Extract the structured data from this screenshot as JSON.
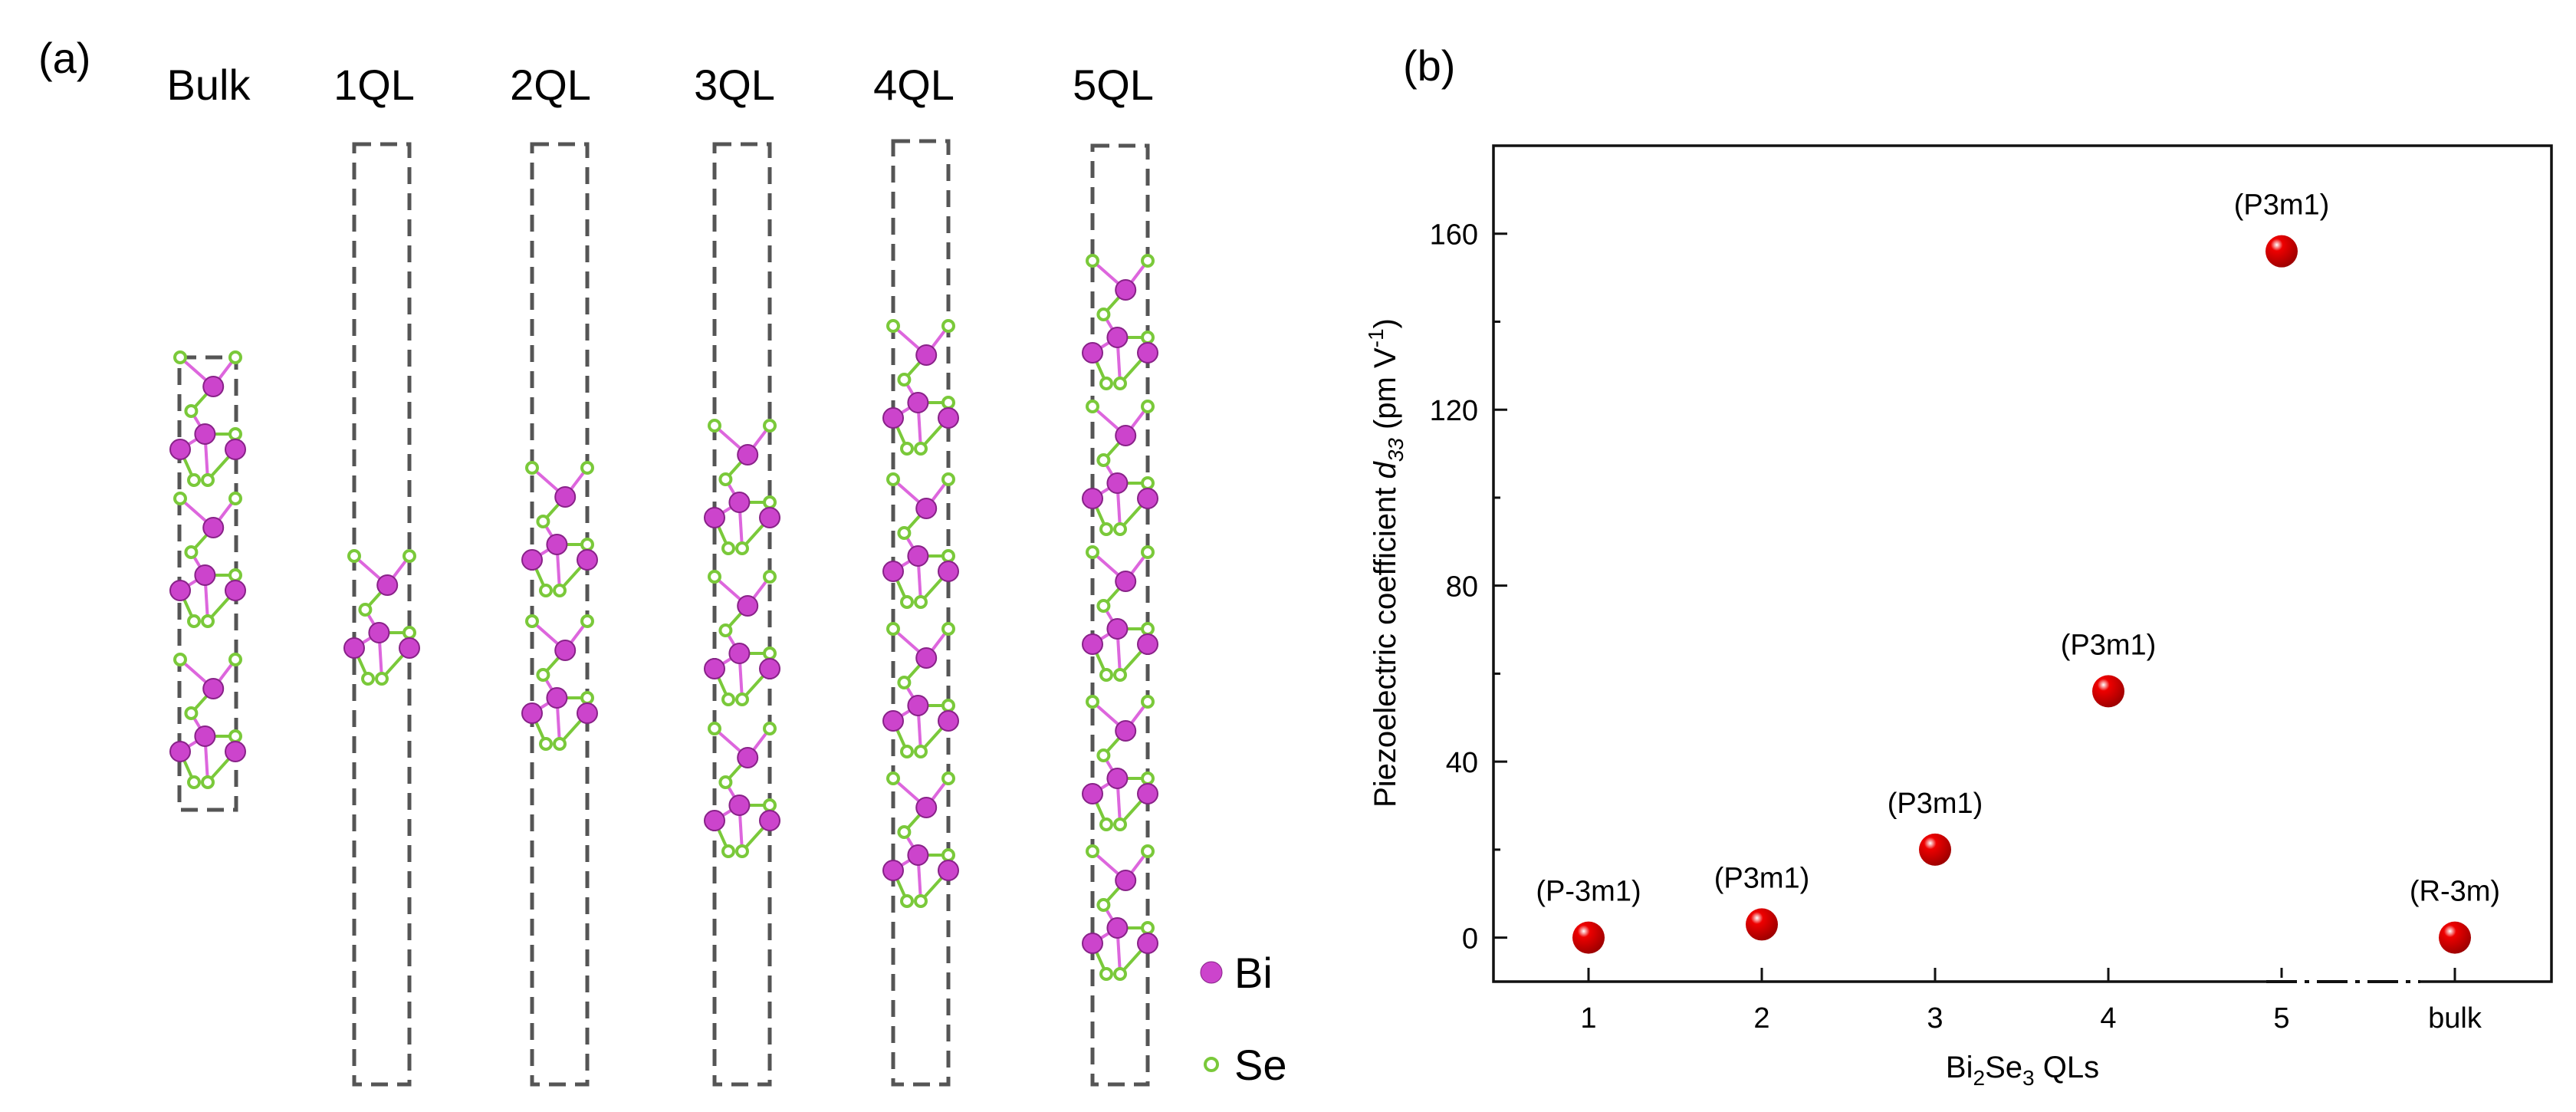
{
  "panel_a": {
    "label": "(a)",
    "columns": [
      "Bulk",
      "1QL",
      "2QL",
      "3QL",
      "4QL",
      "5QL"
    ],
    "legend": [
      {
        "name": "Bi",
        "color": "#cc44cc"
      },
      {
        "name": "Se",
        "color": "#7ac93a"
      }
    ],
    "colors": {
      "box": "#555555",
      "bond_bi": "#dd66dd",
      "bond_se": "#7ac93a"
    }
  },
  "panel_b": {
    "label": "(b)",
    "point_color": "#ee0000"
  },
  "chart_data": {
    "type": "scatter",
    "title": "",
    "xlabel": "Bi₂Se₃ QLs",
    "xlabel_parts": [
      "Bi",
      "2",
      "Se",
      "3",
      " QLs"
    ],
    "ylabel": "Piezoelectric coefficient d33 (pm V-1)",
    "ylabel_parts": [
      "Piezoelectric coefficient ",
      "d",
      "33",
      " (pm V",
      "-1",
      ")"
    ],
    "categories": [
      "1",
      "2",
      "3",
      "4",
      "5",
      "bulk"
    ],
    "values": [
      0,
      3,
      20,
      56,
      156,
      0
    ],
    "annotations": [
      "(P-3m1)",
      "(P3m1)",
      "(P3m1)",
      "(P3m1)",
      "(P3m1)",
      "(R-3m)"
    ],
    "ylim": [
      -10,
      180
    ],
    "yticks": [
      0,
      40,
      80,
      120,
      160
    ],
    "axis_break_between": [
      "5",
      "bulk"
    ],
    "grid": false
  }
}
